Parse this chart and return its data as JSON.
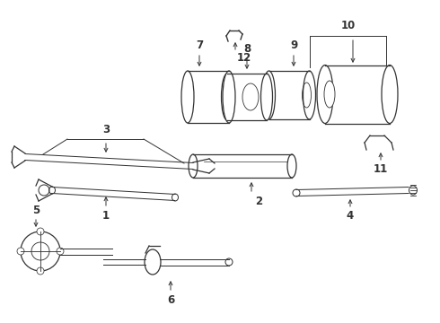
{
  "bg_color": "#ffffff",
  "line_color": "#333333",
  "figsize": [
    4.9,
    3.6
  ],
  "dpi": 100,
  "xlim": [
    0,
    490
  ],
  "ylim": [
    0,
    360
  ]
}
